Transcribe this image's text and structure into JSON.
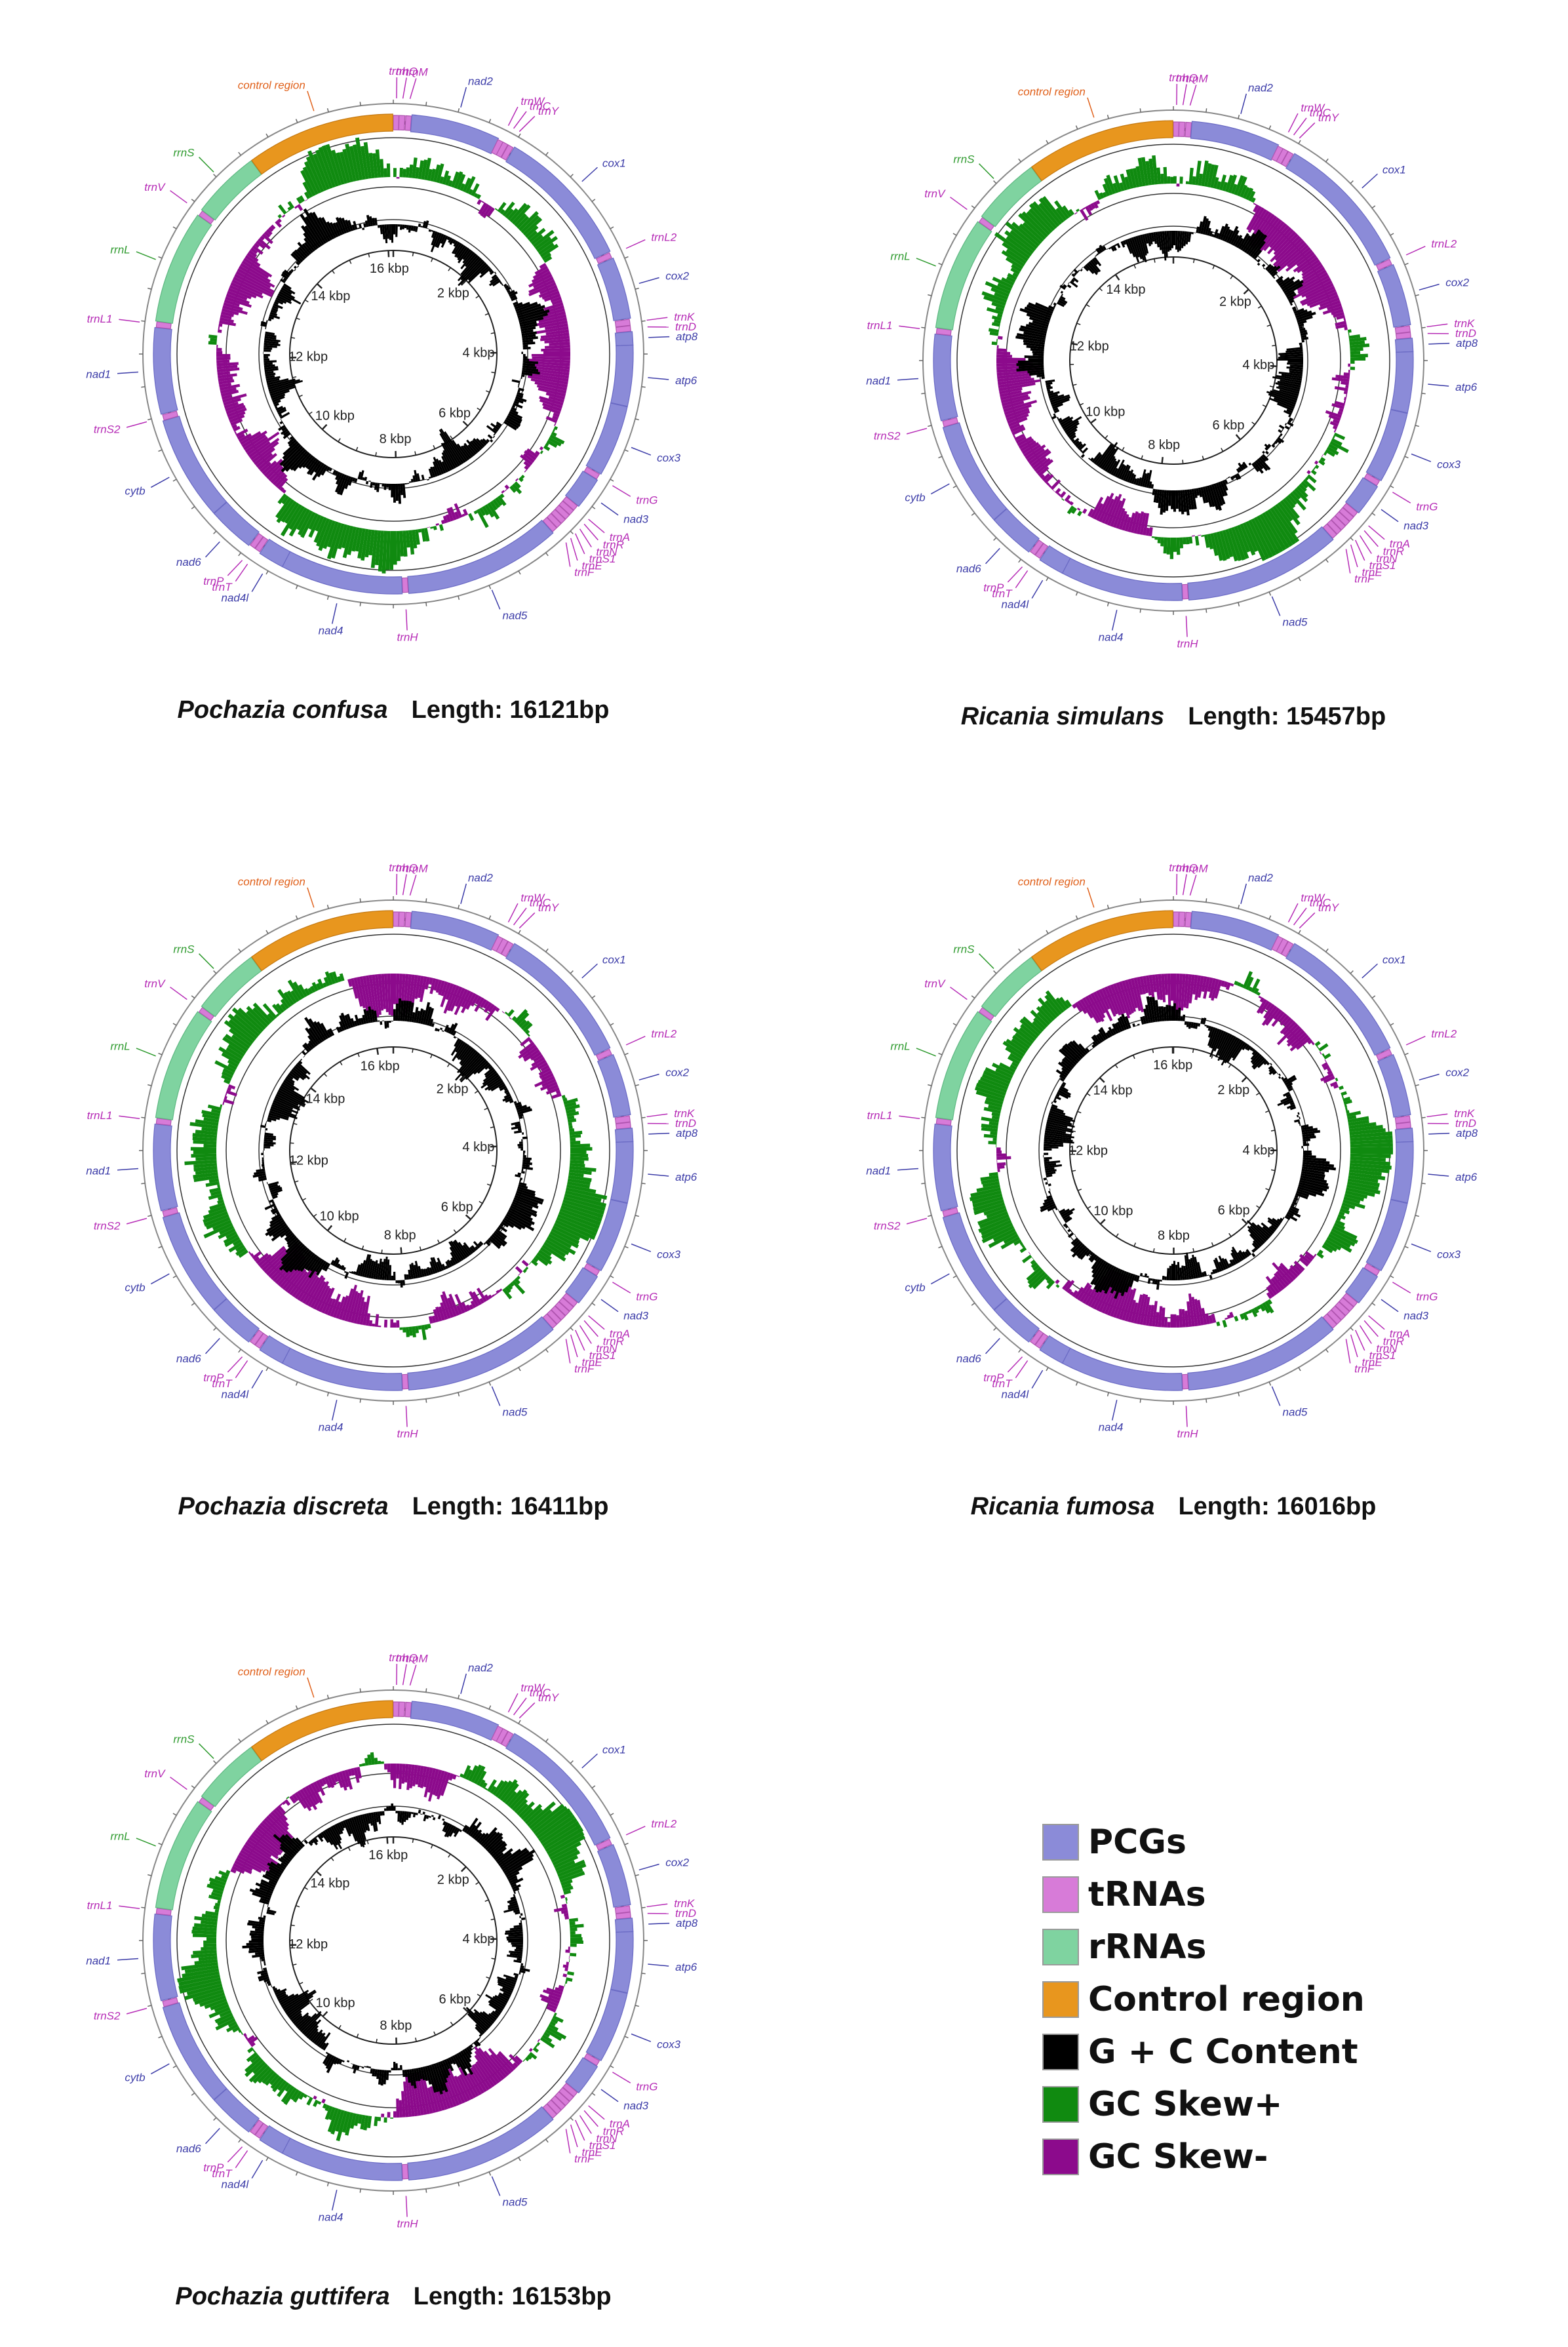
{
  "colors": {
    "pcg": "#8b8bd8",
    "trna": "#d77bd8",
    "rrna": "#7fd3a0",
    "control": "#e8961e",
    "gc_content": "#000000",
    "skew_pos": "#108a10",
    "skew_neg": "#8c0a8c",
    "label_pcg": "#3c3ca8",
    "label_trna": "#b62bb6",
    "label_rrna": "#2e9a2e",
    "label_control": "#e0601a"
  },
  "legend": [
    {
      "key": "pcg",
      "label": "PCGs"
    },
    {
      "key": "trna",
      "label": "tRNAs"
    },
    {
      "key": "rrna",
      "label": "rRNAs"
    },
    {
      "key": "control",
      "label": "Control region"
    },
    {
      "key": "gc_content",
      "label": "G + C Content"
    },
    {
      "key": "skew_pos",
      "label": "GC Skew+"
    },
    {
      "key": "skew_neg",
      "label": "GC Skew-"
    }
  ],
  "ticks": [
    "2 kbp",
    "4 kbp",
    "6 kbp",
    "8 kbp",
    "10 kbp",
    "12 kbp",
    "14 kbp",
    "16 kbp"
  ],
  "genes": [
    {
      "name": "trnI",
      "type": "trna",
      "start": 0,
      "end": 65
    },
    {
      "name": "trnQ",
      "type": "trna",
      "start": 62,
      "end": 130
    },
    {
      "name": "trnM",
      "type": "trna",
      "start": 135,
      "end": 200
    },
    {
      "name": "nad2",
      "type": "pcg",
      "start": 200,
      "end": 1170
    },
    {
      "name": "trnW",
      "type": "trna",
      "start": 1165,
      "end": 1230
    },
    {
      "name": "trnC",
      "type": "trna",
      "start": 1225,
      "end": 1290
    },
    {
      "name": "trnY",
      "type": "trna",
      "start": 1290,
      "end": 1355
    },
    {
      "name": "cox1",
      "type": "pcg",
      "start": 1360,
      "end": 2900
    },
    {
      "name": "trnL2",
      "type": "trna",
      "start": 2905,
      "end": 2970
    },
    {
      "name": "cox2",
      "type": "pcg",
      "start": 2975,
      "end": 3650
    },
    {
      "name": "trnK",
      "type": "trna",
      "start": 3655,
      "end": 3725
    },
    {
      "name": "trnD",
      "type": "trna",
      "start": 3725,
      "end": 3790
    },
    {
      "name": "atp8",
      "type": "pcg",
      "start": 3790,
      "end": 3940
    },
    {
      "name": "atp6",
      "type": "pcg",
      "start": 3935,
      "end": 4600
    },
    {
      "name": "cox3",
      "type": "pcg",
      "start": 4600,
      "end": 5380
    },
    {
      "name": "trnG",
      "type": "trna",
      "start": 5385,
      "end": 5450
    },
    {
      "name": "nad3",
      "type": "pcg",
      "start": 5450,
      "end": 5800
    },
    {
      "name": "trnA",
      "type": "trna",
      "start": 5800,
      "end": 5865
    },
    {
      "name": "trnR",
      "type": "trna",
      "start": 5865,
      "end": 5930
    },
    {
      "name": "trnN",
      "type": "trna",
      "start": 5930,
      "end": 5995
    },
    {
      "name": "trnS1",
      "type": "trna",
      "start": 5995,
      "end": 6060
    },
    {
      "name": "trnE",
      "type": "trna",
      "start": 6060,
      "end": 6125
    },
    {
      "name": "trnF",
      "type": "trna",
      "start": 6125,
      "end": 6190
    },
    {
      "name": "nad5",
      "type": "pcg",
      "start": 6190,
      "end": 7900
    },
    {
      "name": "trnH",
      "type": "trna",
      "start": 7900,
      "end": 7965
    },
    {
      "name": "nad4",
      "type": "pcg",
      "start": 7965,
      "end": 9300
    },
    {
      "name": "nad4l",
      "type": "pcg",
      "start": 9295,
      "end": 9580
    },
    {
      "name": "trnT",
      "type": "trna",
      "start": 9585,
      "end": 9650
    },
    {
      "name": "trnP",
      "type": "trna",
      "start": 9650,
      "end": 9715
    },
    {
      "name": "nad6",
      "type": "pcg",
      "start": 9720,
      "end": 10230
    },
    {
      "name": "cytb",
      "type": "pcg",
      "start": 10230,
      "end": 11370
    },
    {
      "name": "trnS2",
      "type": "trna",
      "start": 11370,
      "end": 11435
    },
    {
      "name": "nad1",
      "type": "pcg",
      "start": 11440,
      "end": 12380
    },
    {
      "name": "trnL1",
      "type": "trna",
      "start": 12380,
      "end": 12445
    },
    {
      "name": "rrnL",
      "type": "rrna",
      "start": 12445,
      "end": 13680
    },
    {
      "name": "trnV",
      "type": "trna",
      "start": 13680,
      "end": 13745
    },
    {
      "name": "rrnS",
      "type": "rrna",
      "start": 13745,
      "end": 14500
    },
    {
      "name": "control region",
      "type": "control",
      "start": 14500,
      "end": 16121
    }
  ],
  "maps": [
    {
      "species": "Pochazia confusa",
      "length_label": "Length: 16121bp",
      "length": 16121,
      "seed": 11
    },
    {
      "species": "Ricania simulans",
      "length_label": "Length: 15457bp",
      "length": 15457,
      "seed": 23
    },
    {
      "species": "Pochazia discreta",
      "length_label": "Length: 16411bp",
      "length": 16411,
      "seed": 37
    },
    {
      "species": "Ricania fumosa",
      "length_label": "Length: 16016bp",
      "length": 16016,
      "seed": 41
    },
    {
      "species": "Pochazia guttifera",
      "length_label": "Length: 16153bp",
      "length": 16153,
      "seed": 53
    }
  ]
}
